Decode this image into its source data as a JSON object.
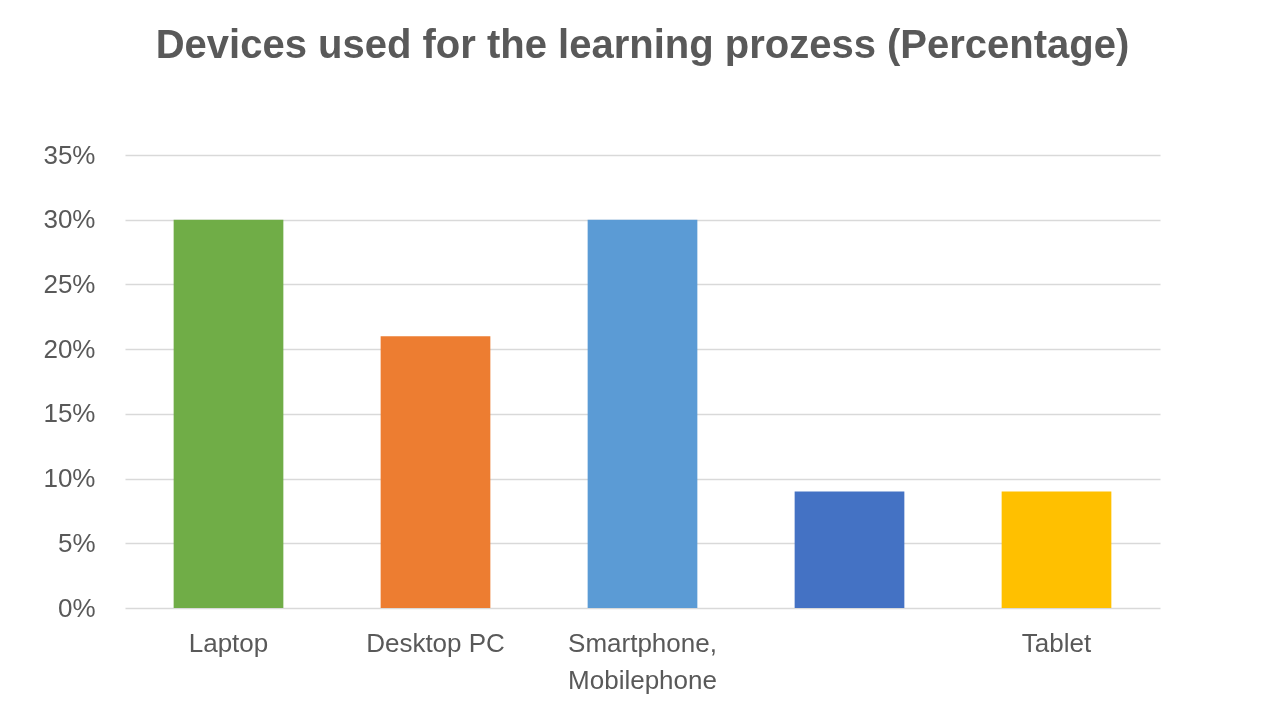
{
  "chart_data": {
    "type": "bar",
    "title": "Devices used for the learning prozess (Percentage)",
    "categories": [
      "Laptop",
      "Desktop PC",
      "Smartphone, Mobilephone",
      null,
      "Tablet"
    ],
    "values": [
      30,
      21,
      30,
      9,
      9
    ],
    "colors": [
      "#70ad47",
      "#ed7d31",
      "#5b9bd5",
      "#4472c4",
      "#ffc000"
    ],
    "ylim": [
      0,
      35
    ],
    "yticks": [
      {
        "value": 0,
        "label": "0%"
      },
      {
        "value": 5,
        "label": "5%"
      },
      {
        "value": 10,
        "label": "10%"
      },
      {
        "value": 15,
        "label": "15%"
      },
      {
        "value": 20,
        "label": "20%"
      },
      {
        "value": 25,
        "label": "25%"
      },
      {
        "value": 30,
        "label": "30%"
      },
      {
        "value": 35,
        "label": "35%"
      }
    ],
    "grid": "y"
  }
}
